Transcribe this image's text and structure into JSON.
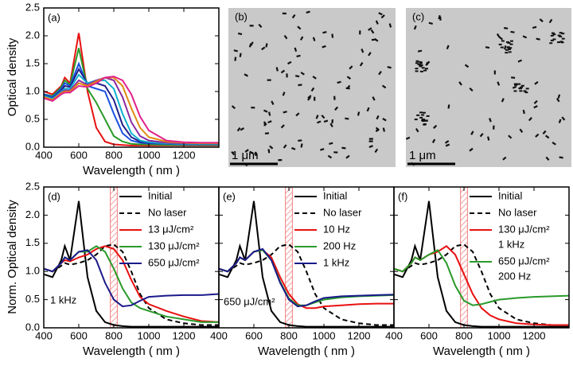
{
  "chart_data": [
    {
      "type": "line",
      "panel_label": "(a)",
      "x_label": "Wavelength ( nm )",
      "y_label": "Optical density",
      "x": [
        400,
        450,
        500,
        520,
        550,
        600,
        650,
        700,
        750,
        800,
        850,
        900,
        950,
        1000,
        1100,
        1200,
        1300,
        1400
      ],
      "xlim": [
        400,
        1400
      ],
      "ylim": [
        0,
        2.5
      ],
      "xticks": [
        400,
        600,
        800,
        1000,
        1200
      ],
      "yticks": [
        0.0,
        0.5,
        1.0,
        1.5,
        2.0,
        2.5
      ],
      "series": [
        {
          "color": "#e81010",
          "values": [
            1.0,
            0.95,
            1.1,
            1.25,
            1.15,
            2.05,
            1.0,
            0.35,
            0.1,
            0.05,
            0.04,
            0.03,
            0.03,
            0.03,
            0.03,
            0.03,
            0.03,
            0.03
          ]
        },
        {
          "color": "#2a9a2a",
          "values": [
            0.95,
            0.92,
            1.08,
            1.2,
            1.12,
            1.78,
            1.05,
            0.8,
            0.5,
            0.2,
            0.1,
            0.06,
            0.05,
            0.05,
            0.04,
            0.04,
            0.04,
            0.04
          ]
        },
        {
          "color": "#1a50e0",
          "values": [
            0.95,
            0.9,
            1.05,
            1.15,
            1.1,
            1.5,
            1.1,
            1.05,
            1.0,
            0.6,
            0.25,
            0.12,
            0.08,
            0.07,
            0.06,
            0.05,
            0.05,
            0.05
          ]
        },
        {
          "color": "#20208a",
          "values": [
            0.93,
            0.88,
            1.02,
            1.1,
            1.08,
            1.4,
            1.15,
            1.15,
            1.1,
            0.85,
            0.4,
            0.18,
            0.1,
            0.08,
            0.07,
            0.06,
            0.06,
            0.06
          ]
        },
        {
          "color": "#10b0d0",
          "values": [
            0.92,
            0.87,
            1.0,
            1.05,
            1.05,
            1.3,
            1.15,
            1.2,
            1.2,
            1.05,
            0.6,
            0.25,
            0.12,
            0.09,
            0.07,
            0.06,
            0.06,
            0.06
          ]
        },
        {
          "color": "#8a2aa0",
          "values": [
            0.9,
            0.85,
            0.98,
            1.02,
            1.02,
            1.2,
            1.12,
            1.2,
            1.25,
            1.2,
            0.9,
            0.45,
            0.2,
            0.12,
            0.08,
            0.07,
            0.07,
            0.07
          ]
        },
        {
          "color": "#e08a10",
          "values": [
            0.9,
            0.85,
            0.97,
            1.0,
            1.0,
            1.15,
            1.1,
            1.18,
            1.25,
            1.25,
            1.1,
            0.7,
            0.35,
            0.18,
            0.1,
            0.08,
            0.07,
            0.07
          ]
        },
        {
          "color": "#e0208a",
          "values": [
            0.88,
            0.83,
            0.95,
            0.98,
            0.98,
            1.1,
            1.08,
            1.15,
            1.25,
            1.27,
            1.2,
            0.95,
            0.55,
            0.3,
            0.12,
            0.09,
            0.08,
            0.08
          ]
        }
      ]
    },
    {
      "type": "line",
      "panel_label": "(d)",
      "x_label": "Wavelength ( nm )",
      "y_label": "Norm. Optical density",
      "annotation": "1 kHz",
      "x": [
        400,
        450,
        500,
        520,
        550,
        600,
        650,
        700,
        750,
        800,
        850,
        900,
        950,
        1000,
        1100,
        1200,
        1300,
        1400
      ],
      "xlim": [
        400,
        1400
      ],
      "ylim": [
        0,
        2.5
      ],
      "xticks": [
        400,
        600,
        800,
        1000,
        1200
      ],
      "yticks": [
        0.0,
        0.5,
        1.0,
        1.5,
        2.0,
        2.5
      ],
      "ytick_labels": true,
      "highlight_x": [
        780,
        820
      ],
      "series": [
        {
          "name": "Initial",
          "color": "#000000",
          "values": [
            0.95,
            0.9,
            1.2,
            1.45,
            1.2,
            2.25,
            0.9,
            0.3,
            0.1,
            0.05,
            0.03,
            0.02,
            0.02,
            0.02,
            0.02,
            0.02,
            0.02,
            0.02
          ]
        },
        {
          "name": "No laser",
          "color": "#000000",
          "dash": true,
          "values": [
            1.05,
            1.0,
            1.1,
            1.15,
            1.12,
            1.15,
            1.2,
            1.3,
            1.45,
            1.48,
            1.35,
            1.0,
            0.6,
            0.35,
            0.15,
            0.08,
            0.05,
            0.05
          ]
        },
        {
          "name": "13 μJ/cm²",
          "color": "#e81010",
          "values": [
            1.05,
            1.0,
            1.15,
            1.2,
            1.18,
            1.25,
            1.3,
            1.4,
            1.45,
            1.4,
            1.2,
            0.85,
            0.55,
            0.42,
            0.3,
            0.2,
            0.12,
            0.1
          ]
        },
        {
          "name": "130 μJ/cm²",
          "color": "#2a9a2a",
          "values": [
            1.05,
            1.0,
            1.15,
            1.25,
            1.2,
            1.35,
            1.35,
            1.45,
            1.35,
            1.05,
            0.7,
            0.45,
            0.35,
            0.3,
            0.2,
            0.15,
            0.1,
            0.1
          ]
        },
        {
          "name": "650 μJ/cm²",
          "color": "#1a1a8a",
          "values": [
            1.05,
            1.0,
            1.15,
            1.25,
            1.2,
            1.35,
            1.38,
            1.2,
            0.8,
            0.5,
            0.38,
            0.4,
            0.48,
            0.55,
            0.57,
            0.58,
            0.58,
            0.6
          ]
        }
      ]
    },
    {
      "type": "line",
      "panel_label": "(e)",
      "x_label": "Wavelength ( nm )",
      "annotation": "650 μJ/cm²",
      "x": [
        400,
        450,
        500,
        520,
        550,
        600,
        650,
        700,
        750,
        800,
        850,
        900,
        950,
        1000,
        1100,
        1200,
        1300,
        1400
      ],
      "xlim": [
        400,
        1400
      ],
      "ylim": [
        0,
        2.5
      ],
      "xticks": [
        400,
        600,
        800,
        1000,
        1200
      ],
      "yticks": [
        0.0,
        0.5,
        1.0,
        1.5,
        2.0,
        2.5
      ],
      "ytick_labels": false,
      "highlight_x": [
        780,
        820
      ],
      "series": [
        {
          "name": "Initial",
          "color": "#000000",
          "values": [
            0.95,
            0.9,
            1.2,
            1.45,
            1.2,
            2.25,
            0.9,
            0.3,
            0.1,
            0.05,
            0.03,
            0.02,
            0.02,
            0.02,
            0.02,
            0.02,
            0.02,
            0.02
          ]
        },
        {
          "name": "No laser",
          "color": "#000000",
          "dash": true,
          "values": [
            1.05,
            1.0,
            1.1,
            1.15,
            1.12,
            1.15,
            1.2,
            1.3,
            1.45,
            1.48,
            1.35,
            1.0,
            0.6,
            0.35,
            0.15,
            0.08,
            0.05,
            0.05
          ]
        },
        {
          "name": "10 Hz",
          "color": "#e81010",
          "values": [
            1.05,
            1.0,
            1.15,
            1.25,
            1.2,
            1.35,
            1.38,
            1.25,
            0.9,
            0.6,
            0.42,
            0.35,
            0.35,
            0.38,
            0.4,
            0.42,
            0.43,
            0.43
          ]
        },
        {
          "name": "200 Hz",
          "color": "#2a9a2a",
          "values": [
            1.05,
            1.0,
            1.15,
            1.25,
            1.2,
            1.35,
            1.38,
            1.2,
            0.82,
            0.52,
            0.4,
            0.4,
            0.45,
            0.5,
            0.54,
            0.56,
            0.57,
            0.58
          ]
        },
        {
          "name": "1 kHz",
          "color": "#1a1a8a",
          "values": [
            1.05,
            1.0,
            1.15,
            1.25,
            1.2,
            1.35,
            1.4,
            1.2,
            0.8,
            0.5,
            0.38,
            0.4,
            0.47,
            0.53,
            0.56,
            0.57,
            0.58,
            0.59
          ]
        }
      ]
    },
    {
      "type": "line",
      "panel_label": "(f)",
      "x_label": "Wavelength ( nm )",
      "x": [
        400,
        450,
        500,
        520,
        550,
        600,
        650,
        700,
        750,
        800,
        850,
        900,
        950,
        1000,
        1100,
        1200,
        1300,
        1400
      ],
      "xlim": [
        400,
        1400
      ],
      "ylim": [
        0,
        2.5
      ],
      "xticks": [
        400,
        600,
        800,
        1000,
        1200
      ],
      "yticks": [
        0.0,
        0.5,
        1.0,
        1.5,
        2.0,
        2.5
      ],
      "ytick_labels": false,
      "highlight_x": [
        780,
        820
      ],
      "series": [
        {
          "name": "Initial",
          "color": "#000000",
          "values": [
            0.95,
            0.9,
            1.2,
            1.45,
            1.2,
            2.25,
            0.9,
            0.3,
            0.1,
            0.05,
            0.03,
            0.02,
            0.02,
            0.02,
            0.02,
            0.02,
            0.02,
            0.02
          ]
        },
        {
          "name": "No laser",
          "color": "#000000",
          "dash": true,
          "values": [
            1.05,
            1.0,
            1.1,
            1.15,
            1.12,
            1.15,
            1.2,
            1.3,
            1.45,
            1.48,
            1.35,
            1.0,
            0.6,
            0.35,
            0.15,
            0.08,
            0.05,
            0.05
          ]
        },
        {
          "name": "130 μJ/cm²",
          "name_line2": "1 kHz",
          "color": "#e81010",
          "values": [
            1.05,
            1.0,
            1.15,
            1.25,
            1.2,
            1.3,
            1.35,
            1.45,
            1.3,
            0.95,
            0.6,
            0.35,
            0.22,
            0.15,
            0.08,
            0.06,
            0.05,
            0.05
          ]
        },
        {
          "name": "650 μJ/cm²",
          "name_line2": "200 Hz",
          "color": "#2a9a2a",
          "values": [
            1.05,
            1.0,
            1.15,
            1.25,
            1.2,
            1.3,
            1.38,
            1.15,
            0.75,
            0.48,
            0.4,
            0.42,
            0.46,
            0.5,
            0.53,
            0.55,
            0.56,
            0.57
          ]
        }
      ]
    }
  ],
  "images": [
    {
      "label": "(b)",
      "scale": "1 μm"
    },
    {
      "label": "(c)",
      "scale": "1 μm"
    }
  ]
}
